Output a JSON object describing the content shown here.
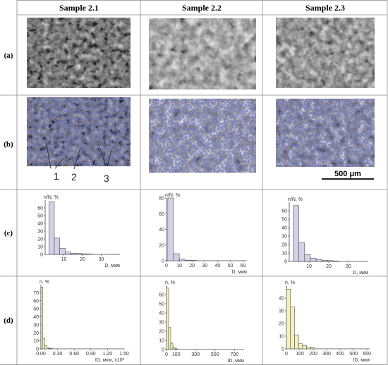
{
  "columns": [
    "Sample 2.1",
    "Sample 2.2",
    "Sample 2.3"
  ],
  "rows": [
    "(a)",
    "(b)",
    "(c)",
    "(d)"
  ],
  "annotations": {
    "b_labels": [
      "1",
      "2",
      "3"
    ],
    "scale_bar": "500 μm"
  },
  "colors": {
    "c_fill": "#d3d0e8",
    "d_fill": "#f3f1b7",
    "grid": "#888888",
    "overlay": "#2a2f8c"
  },
  "chart_data": [
    {
      "id": "c1",
      "type": "bar",
      "ylabel": "n/N, %",
      "xlabel": "D, мкм",
      "ylim": [
        0,
        70
      ],
      "yticks": [
        "0",
        "10",
        "20",
        "30",
        "40",
        "50",
        "60"
      ],
      "xticks": [
        {
          "v": 10,
          "t": "10"
        },
        {
          "v": 20,
          "t": "20"
        },
        {
          "v": 30,
          "t": "30"
        }
      ],
      "xlim": [
        0,
        40
      ],
      "bin_width": 2.9,
      "x_start": 2,
      "values": [
        68,
        21,
        8,
        3,
        1.5,
        1.2,
        0.8,
        0.4
      ]
    },
    {
      "id": "c2",
      "type": "bar",
      "ylabel": "n/N, %",
      "xlabel": "D, мкм",
      "ylim": [
        0,
        80
      ],
      "yticks": [
        "0",
        "20",
        "40",
        "60",
        "80"
      ],
      "xticks": [
        {
          "v": 0,
          "t": "0"
        },
        {
          "v": 10,
          "t": "10"
        },
        {
          "v": 20,
          "t": "20"
        },
        {
          "v": 30,
          "t": "30"
        },
        {
          "v": 40,
          "t": "40"
        },
        {
          "v": 50,
          "t": "50"
        },
        {
          "v": 60,
          "t": "60"
        }
      ],
      "xlim": [
        0,
        63
      ],
      "bin_width": 4.5,
      "x_start": 1,
      "values": [
        80,
        9,
        2,
        0.8,
        0.4
      ]
    },
    {
      "id": "c3",
      "type": "bar",
      "ylabel": "n/N, %",
      "xlabel": "D, мкм",
      "ylim": [
        0,
        70
      ],
      "yticks": [
        "0",
        "10",
        "20",
        "30",
        "40",
        "50",
        "60"
      ],
      "xticks": [
        {
          "v": 10,
          "t": "10"
        },
        {
          "v": 20,
          "t": "20"
        },
        {
          "v": 30,
          "t": "30"
        }
      ],
      "xlim": [
        0,
        40
      ],
      "bin_width": 2.9,
      "x_start": 2,
      "values": [
        66,
        22,
        8,
        4,
        2.5,
        1.5,
        1,
        0.5
      ]
    },
    {
      "id": "d1",
      "type": "bar",
      "ylabel": "n, %",
      "xlabel": "ID, мкм, x10³",
      "ylim": [
        0,
        80
      ],
      "yticks": [
        "0",
        "10",
        "20",
        "30",
        "40",
        "50",
        "60",
        "70"
      ],
      "xticks": [
        {
          "v": 0,
          "t": "0.00"
        },
        {
          "v": 0.3,
          "t": "0.30"
        },
        {
          "v": 0.6,
          "t": "0.60"
        },
        {
          "v": 0.9,
          "t": "0.90"
        },
        {
          "v": 1.2,
          "t": "1.20"
        },
        {
          "v": 1.5,
          "t": "1.50"
        }
      ],
      "xlim": [
        0,
        1.5
      ],
      "bin_width": 0.035,
      "x_start": 0,
      "values": [
        77,
        13,
        4,
        1.5,
        0.7,
        0.4
      ]
    },
    {
      "id": "d2",
      "type": "bar",
      "ylabel": "n, %",
      "xlabel": "ID, мкм",
      "ylim": [
        0,
        70
      ],
      "yticks": [
        "0",
        "10",
        "20",
        "30",
        "40",
        "50",
        "60"
      ],
      "xticks": [
        {
          "v": 0,
          "t": "0"
        },
        {
          "v": 100,
          "t": "100"
        },
        {
          "v": 300,
          "t": "300"
        },
        {
          "v": 500,
          "t": "500"
        },
        {
          "v": 700,
          "t": "700"
        }
      ],
      "xlim": [
        0,
        800
      ],
      "bin_width": 22,
      "x_start": 0,
      "values": [
        67,
        24,
        7,
        2,
        1
      ]
    },
    {
      "id": "d3",
      "type": "bar",
      "ylabel": "n, %",
      "xlabel": "ID, мкм",
      "ylim": [
        0,
        50
      ],
      "yticks": [
        "0",
        "10",
        "20",
        "30",
        "40"
      ],
      "xticks": [
        {
          "v": 0,
          "t": "0"
        },
        {
          "v": 100,
          "t": "100"
        },
        {
          "v": 200,
          "t": "200"
        },
        {
          "v": 300,
          "t": "300"
        },
        {
          "v": 400,
          "t": "400"
        },
        {
          "v": 500,
          "t": "500"
        },
        {
          "v": 600,
          "t": "600"
        }
      ],
      "xlim": [
        0,
        620
      ],
      "bin_width": 30,
      "x_start": 0,
      "values": [
        47,
        33,
        11,
        4,
        2.5,
        1.5,
        0.8
      ]
    }
  ]
}
